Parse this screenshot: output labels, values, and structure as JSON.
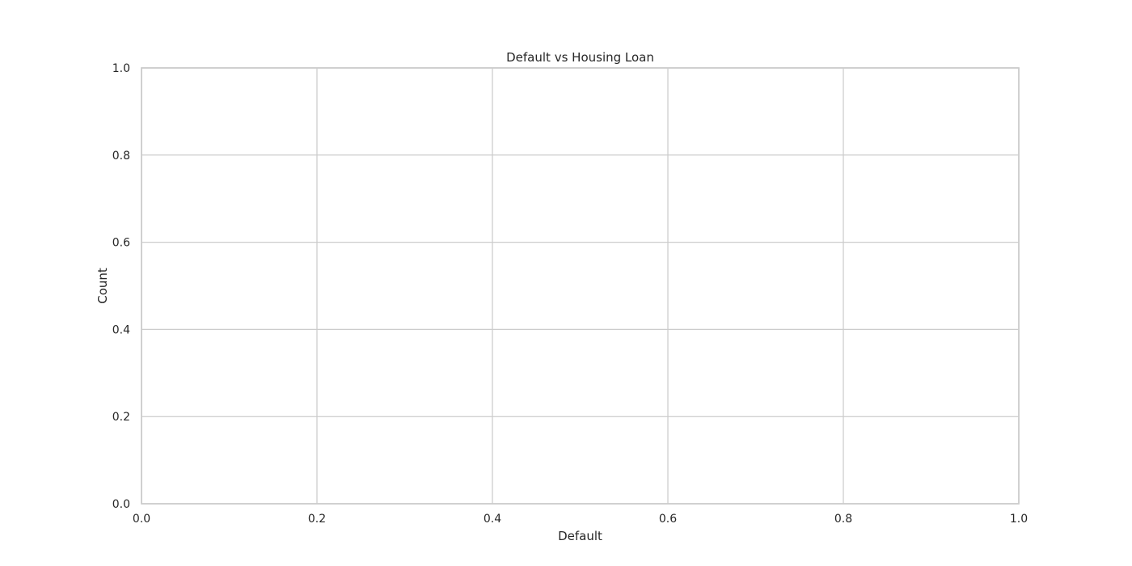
{
  "chart_data": {
    "type": "bar",
    "title": "Default vs Housing Loan",
    "xlabel": "Default",
    "ylabel": "Count",
    "xlim": [
      0.0,
      1.0
    ],
    "ylim": [
      0.0,
      1.0
    ],
    "x_ticks": [
      "0.0",
      "0.2",
      "0.4",
      "0.6",
      "0.8",
      "1.0"
    ],
    "y_ticks": [
      "0.0",
      "0.2",
      "0.4",
      "0.6",
      "0.8",
      "1.0"
    ],
    "categories": [],
    "series": [],
    "grid": true,
    "legend": "none"
  },
  "colors": {
    "background": "#ffffff",
    "grid": "#cccccc",
    "text": "#262626"
  }
}
